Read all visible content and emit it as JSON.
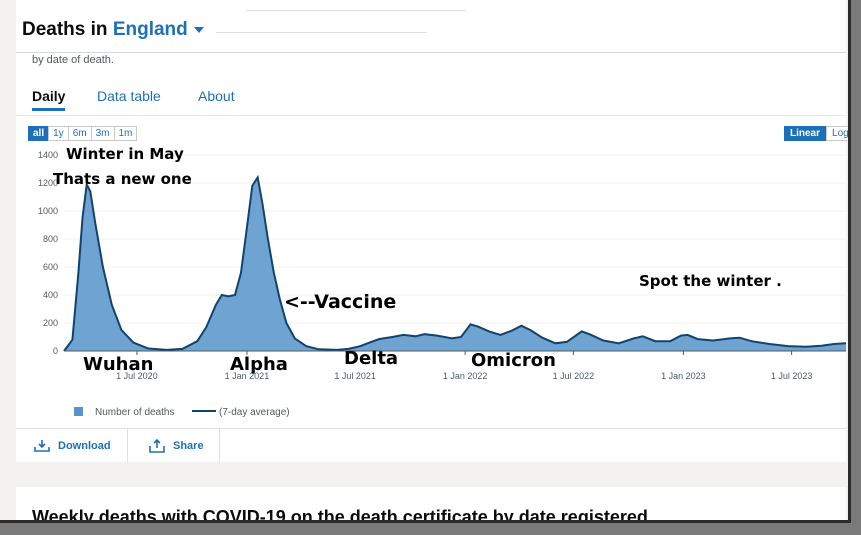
{
  "header": {
    "title_prefix": "Deaths in",
    "area": "England",
    "subtitle": "by date of death."
  },
  "tabs": [
    {
      "label": "Daily",
      "active": true
    },
    {
      "label": "Data table",
      "active": false
    },
    {
      "label": "About",
      "active": false
    }
  ],
  "range_buttons": [
    "all",
    "1y",
    "6m",
    "3m",
    "1m"
  ],
  "scale_buttons": [
    "Linear",
    "Log"
  ],
  "chart_data": {
    "type": "area",
    "y_ticks": [
      "0",
      "200",
      "400",
      "600",
      "800",
      "1000",
      "1200",
      "1400"
    ],
    "ylim": [
      0,
      1400
    ],
    "x_ticks": [
      {
        "label": "1 Jul 2020",
        "date": "2020-07-01"
      },
      {
        "label": "1 Jan 2021",
        "date": "2021-01-01"
      },
      {
        "label": "1 Jul 2021",
        "date": "2021-07-01"
      },
      {
        "label": "1 Jan 2022",
        "date": "2022-01-01"
      },
      {
        "label": "1 Jul 2022",
        "date": "2022-07-01"
      },
      {
        "label": "1 Jan 2023",
        "date": "2023-01-01"
      },
      {
        "label": "1 Jul 2023",
        "date": "2023-07-01"
      }
    ],
    "series": [
      {
        "name": "Number of deaths",
        "color": "#5694ca"
      },
      {
        "name": "(7-day average)",
        "color": "#12436d"
      }
    ],
    "points": [
      [
        "2020-03-01",
        0
      ],
      [
        "2020-03-15",
        80
      ],
      [
        "2020-03-25",
        550
      ],
      [
        "2020-04-01",
        950
      ],
      [
        "2020-04-08",
        1190
      ],
      [
        "2020-04-14",
        1140
      ],
      [
        "2020-04-22",
        920
      ],
      [
        "2020-05-05",
        600
      ],
      [
        "2020-05-20",
        330
      ],
      [
        "2020-06-05",
        150
      ],
      [
        "2020-06-25",
        60
      ],
      [
        "2020-07-20",
        18
      ],
      [
        "2020-08-20",
        8
      ],
      [
        "2020-09-15",
        15
      ],
      [
        "2020-10-10",
        70
      ],
      [
        "2020-10-25",
        170
      ],
      [
        "2020-11-10",
        330
      ],
      [
        "2020-11-20",
        400
      ],
      [
        "2020-12-01",
        390
      ],
      [
        "2020-12-12",
        400
      ],
      [
        "2020-12-22",
        560
      ],
      [
        "2021-01-01",
        880
      ],
      [
        "2021-01-10",
        1180
      ],
      [
        "2021-01-19",
        1240
      ],
      [
        "2021-01-27",
        1050
      ],
      [
        "2021-02-05",
        800
      ],
      [
        "2021-02-15",
        560
      ],
      [
        "2021-02-25",
        370
      ],
      [
        "2021-03-08",
        200
      ],
      [
        "2021-03-22",
        90
      ],
      [
        "2021-04-10",
        35
      ],
      [
        "2021-05-01",
        12
      ],
      [
        "2021-06-01",
        8
      ],
      [
        "2021-06-20",
        15
      ],
      [
        "2021-07-10",
        35
      ],
      [
        "2021-07-25",
        60
      ],
      [
        "2021-08-10",
        85
      ],
      [
        "2021-09-01",
        100
      ],
      [
        "2021-09-20",
        115
      ],
      [
        "2021-10-10",
        105
      ],
      [
        "2021-10-25",
        120
      ],
      [
        "2021-11-15",
        110
      ],
      [
        "2021-12-10",
        90
      ],
      [
        "2021-12-25",
        100
      ],
      [
        "2022-01-10",
        190
      ],
      [
        "2022-01-22",
        175
      ],
      [
        "2022-02-10",
        140
      ],
      [
        "2022-03-01",
        115
      ],
      [
        "2022-03-20",
        145
      ],
      [
        "2022-04-05",
        180
      ],
      [
        "2022-04-20",
        150
      ],
      [
        "2022-05-10",
        95
      ],
      [
        "2022-06-01",
        55
      ],
      [
        "2022-06-20",
        65
      ],
      [
        "2022-07-15",
        140
      ],
      [
        "2022-07-28",
        120
      ],
      [
        "2022-08-20",
        75
      ],
      [
        "2022-09-15",
        55
      ],
      [
        "2022-10-10",
        90
      ],
      [
        "2022-10-25",
        105
      ],
      [
        "2022-11-15",
        70
      ],
      [
        "2022-12-10",
        70
      ],
      [
        "2022-12-28",
        110
      ],
      [
        "2023-01-08",
        115
      ],
      [
        "2023-01-25",
        85
      ],
      [
        "2023-02-20",
        75
      ],
      [
        "2023-03-20",
        90
      ],
      [
        "2023-04-05",
        95
      ],
      [
        "2023-04-25",
        70
      ],
      [
        "2023-05-25",
        50
      ],
      [
        "2023-06-25",
        35
      ],
      [
        "2023-07-25",
        30
      ],
      [
        "2023-08-20",
        38
      ],
      [
        "2023-09-10",
        50
      ],
      [
        "2023-09-30",
        55
      ]
    ],
    "annotations": [
      {
        "text": "Winter in May"
      },
      {
        "text": "Thats a new one"
      },
      {
        "text": "<--Vaccine"
      },
      {
        "text": "Spot the winter ."
      },
      {
        "text": "Wuhan"
      },
      {
        "text": "Alpha"
      },
      {
        "text": "Delta"
      },
      {
        "text": "Omicron"
      }
    ]
  },
  "footer": {
    "download": "Download",
    "share": "Share"
  },
  "next_card": {
    "heading": "Weekly deaths with COVID-19 on the death certificate by date registered"
  }
}
